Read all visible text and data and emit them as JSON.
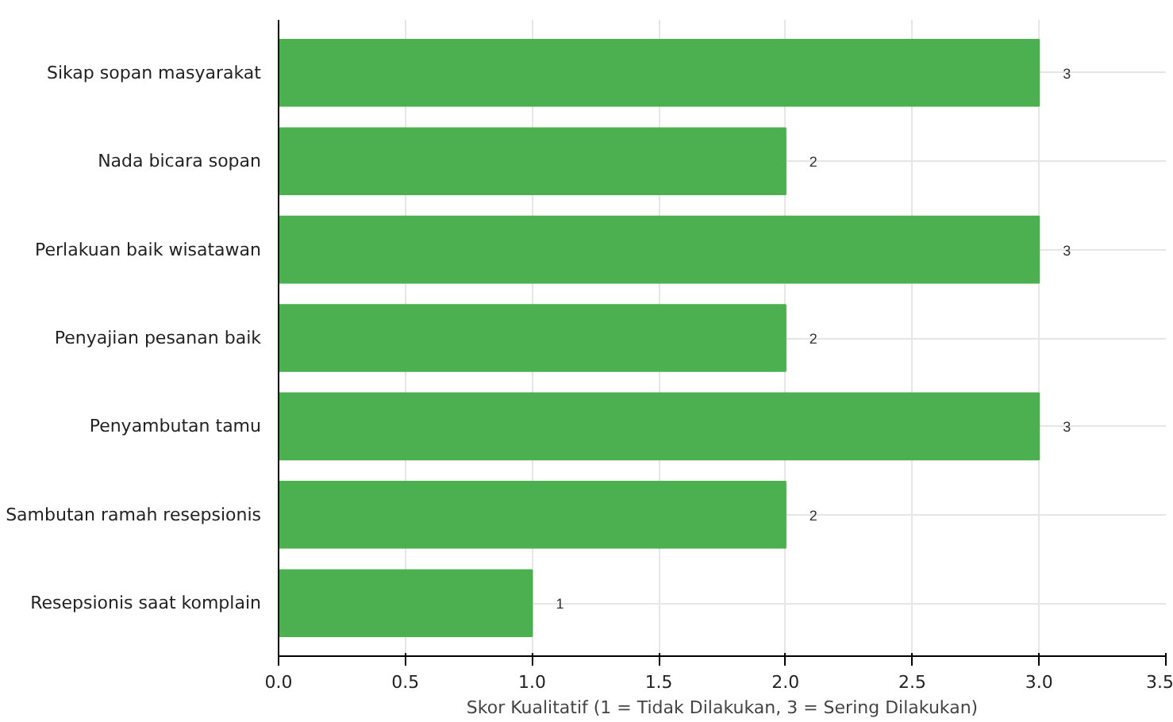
{
  "chart_data": {
    "type": "bar",
    "orientation": "horizontal",
    "xlabel": "Skor Kualitatif (1 = Tidak Dilakukan, 3 = Sering Dilakukan)",
    "categories": [
      "Sikap sopan masyarakat",
      "Nada bicara sopan",
      "Perlakuan baik wisatawan",
      "Penyajian pesanan baik",
      "Penyambutan tamu",
      "Sambutan ramah resepsionis",
      "Resepsionis saat komplain"
    ],
    "values": [
      3,
      2,
      3,
      2,
      3,
      2,
      1
    ],
    "color": "#4caf50",
    "xlim": [
      0,
      3.5
    ],
    "xticks": [
      {
        "value": 0,
        "label": "0.0"
      },
      0.5,
      {
        "value": 1,
        "label": "1.0"
      },
      1.5,
      {
        "value": 2,
        "label": "2.0"
      },
      2.5,
      {
        "value": 3,
        "label": "3.0"
      },
      3.5
    ],
    "grid": true,
    "data_labels": true
  }
}
